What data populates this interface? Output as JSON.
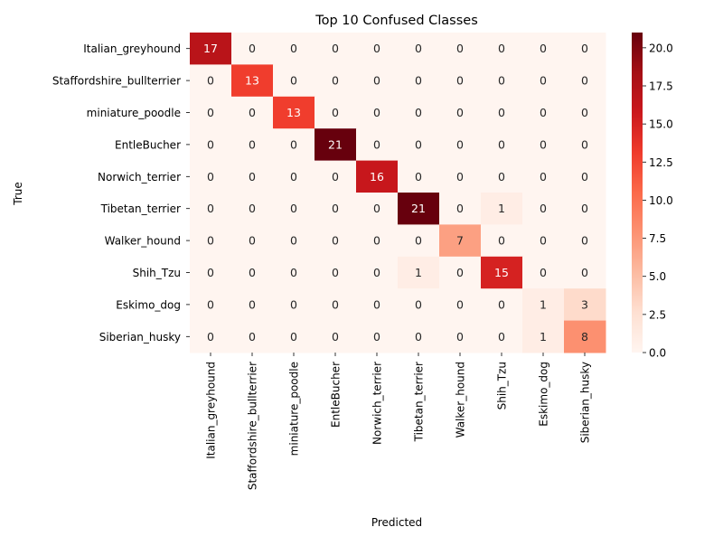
{
  "chart_data": {
    "type": "heatmap",
    "title": "Top 10 Confused Classes",
    "xlabel": "Predicted",
    "ylabel": "True",
    "x_categories": [
      "Italian_greyhound",
      "Staffordshire_bullterrier",
      "miniature_poodle",
      "EntleBucher",
      "Norwich_terrier",
      "Tibetan_terrier",
      "Walker_hound",
      "Shih_Tzu",
      "Eskimo_dog",
      "Siberian_husky"
    ],
    "y_categories": [
      "Italian_greyhound",
      "Staffordshire_bullterrier",
      "miniature_poodle",
      "EntleBucher",
      "Norwich_terrier",
      "Tibetan_terrier",
      "Walker_hound",
      "Shih_Tzu",
      "Eskimo_dog",
      "Siberian_husky"
    ],
    "values": [
      [
        17,
        0,
        0,
        0,
        0,
        0,
        0,
        0,
        0,
        0
      ],
      [
        0,
        13,
        0,
        0,
        0,
        0,
        0,
        0,
        0,
        0
      ],
      [
        0,
        0,
        13,
        0,
        0,
        0,
        0,
        0,
        0,
        0
      ],
      [
        0,
        0,
        0,
        21,
        0,
        0,
        0,
        0,
        0,
        0
      ],
      [
        0,
        0,
        0,
        0,
        16,
        0,
        0,
        0,
        0,
        0
      ],
      [
        0,
        0,
        0,
        0,
        0,
        21,
        0,
        1,
        0,
        0
      ],
      [
        0,
        0,
        0,
        0,
        0,
        0,
        7,
        0,
        0,
        0
      ],
      [
        0,
        0,
        0,
        0,
        0,
        1,
        0,
        15,
        0,
        0
      ],
      [
        0,
        0,
        0,
        0,
        0,
        0,
        0,
        0,
        1,
        3
      ],
      [
        0,
        0,
        0,
        0,
        0,
        0,
        0,
        0,
        1,
        8
      ]
    ],
    "colormap": "Reds",
    "vmin": 0,
    "vmax": 21,
    "colorbar_ticks": [
      "0.0",
      "2.5",
      "5.0",
      "7.5",
      "10.0",
      "12.5",
      "15.0",
      "17.5",
      "20.0"
    ],
    "annotations": true,
    "grid": false
  }
}
